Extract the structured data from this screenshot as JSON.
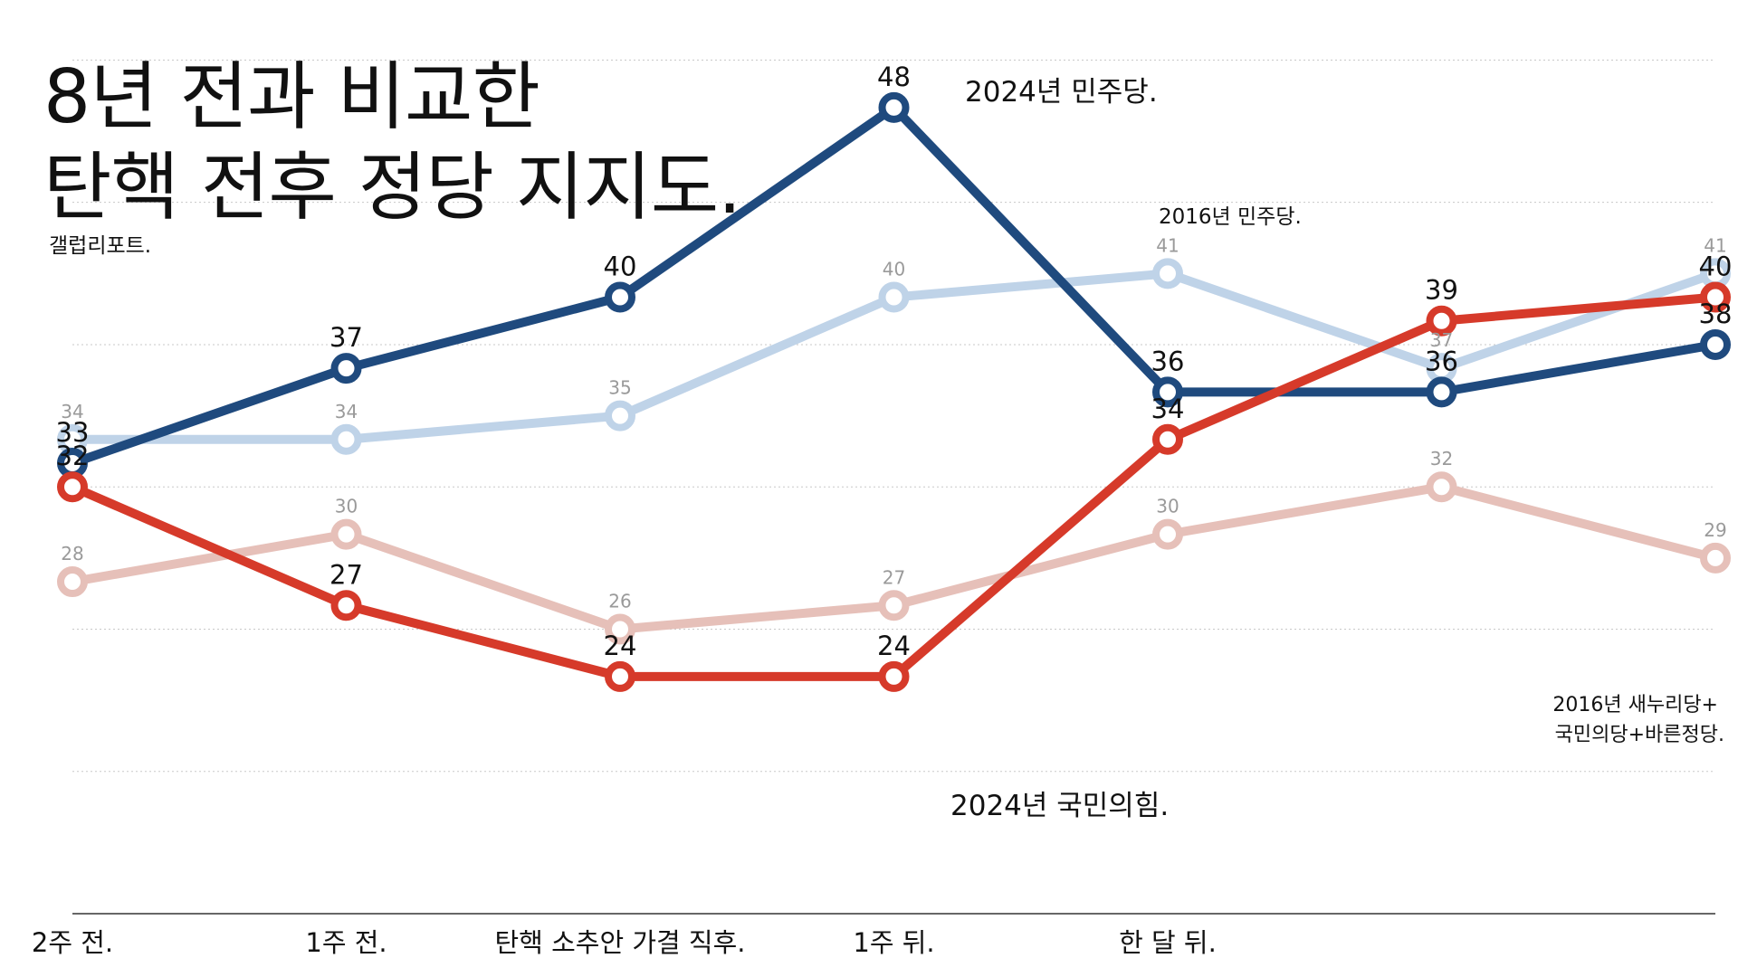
{
  "title_lines": [
    "8년 전과 비교한",
    "탄핵 전후 정당 지지도."
  ],
  "source": "갤럽리포트.",
  "chart_data": {
    "type": "line",
    "x_labels": [
      "2주 전.",
      "1주 전.",
      "탄핵 소추안 가결 직후.",
      "1주 뒤.",
      "한 달 뒤.",
      "",
      ""
    ],
    "ylim": [
      14,
      52
    ],
    "grid": true,
    "series": [
      {
        "name": "2016년 민주당.",
        "values": [
          34,
          34,
          35,
          40,
          41,
          37,
          41
        ],
        "color": "#bfd3e8",
        "style": "light"
      },
      {
        "name": "2016년 새누리당+ 국민의당+바른정당.",
        "values": [
          28,
          30,
          26,
          27,
          30,
          32,
          29
        ],
        "color": "#e6c0b9",
        "style": "light"
      },
      {
        "name": "2024년 민주당.",
        "values": [
          33,
          37,
          40,
          48,
          36,
          36,
          38
        ],
        "color": "#1f4a7e",
        "style": "strong"
      },
      {
        "name": "2024년 국민의힘.",
        "values": [
          32,
          27,
          24,
          24,
          34,
          39,
          40
        ],
        "color": "#d63a2a",
        "style": "strong"
      }
    ]
  }
}
